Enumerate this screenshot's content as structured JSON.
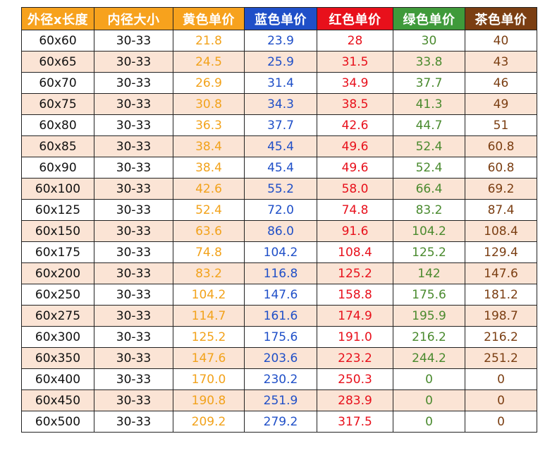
{
  "colors": {
    "header_size": "#f7a21d",
    "header_inner": "#f7a21d",
    "header_yellow": "#f7a21d",
    "header_blue": "#1f4fc8",
    "header_red": "#e8101b",
    "header_green": "#3f9a3a",
    "header_brown": "#7b3e12",
    "stripe": "#fbe4d5"
  },
  "table": {
    "headers": [
      "外径x长度",
      "内径大小",
      "黄色单价",
      "蓝色单价",
      "红色单价",
      "绿色单价",
      "茶色单价"
    ],
    "rows": [
      [
        "60x60",
        "30-33",
        "21.8",
        "23.9",
        "28",
        "30",
        "40"
      ],
      [
        "60x65",
        "30-33",
        "24.5",
        "25.9",
        "31.5",
        "33.8",
        "43"
      ],
      [
        "60x70",
        "30-33",
        "26.9",
        "31.4",
        "34.9",
        "37.7",
        "46"
      ],
      [
        "60x75",
        "30-33",
        "30.8",
        "34.3",
        "38.5",
        "41.3",
        "49"
      ],
      [
        "60x80",
        "30-33",
        "36.3",
        "37.7",
        "42.6",
        "44.7",
        "51"
      ],
      [
        "60x85",
        "30-33",
        "38.4",
        "45.4",
        "49.6",
        "52.4",
        "60.8"
      ],
      [
        "60x90",
        "30-33",
        "38.4",
        "45.4",
        "49.6",
        "52.4",
        "60.8"
      ],
      [
        "60x100",
        "30-33",
        "42.6",
        "55.2",
        "58.0",
        "66.4",
        "69.2"
      ],
      [
        "60x125",
        "30-33",
        "52.4",
        "72.0",
        "74.8",
        "83.2",
        "87.4"
      ],
      [
        "60x150",
        "30-33",
        "63.6",
        "86.0",
        "91.6",
        "104.2",
        "108.4"
      ],
      [
        "60x175",
        "30-33",
        "74.8",
        "104.2",
        "108.4",
        "125.2",
        "129.4"
      ],
      [
        "60x200",
        "30-33",
        "83.2",
        "116.8",
        "125.2",
        "142",
        "147.6"
      ],
      [
        "60x250",
        "30-33",
        "104.2",
        "147.6",
        "158.8",
        "175.6",
        "181.2"
      ],
      [
        "60x275",
        "30-33",
        "114.7",
        "161.6",
        "174.9",
        "195.9",
        "198.7"
      ],
      [
        "60x300",
        "30-33",
        "125.2",
        "175.6",
        "191.0",
        "216.2",
        "216.2"
      ],
      [
        "60x350",
        "30-33",
        "147.6",
        "203.6",
        "223.2",
        "244.2",
        "251.2"
      ],
      [
        "60x400",
        "30-33",
        "170.0",
        "230.2",
        "250.3",
        "0",
        "0"
      ],
      [
        "60x450",
        "30-33",
        "190.8",
        "251.9",
        "283.9",
        "0",
        "0"
      ],
      [
        "60x500",
        "30-33",
        "209.2",
        "279.2",
        "317.5",
        "0",
        "0"
      ]
    ]
  }
}
